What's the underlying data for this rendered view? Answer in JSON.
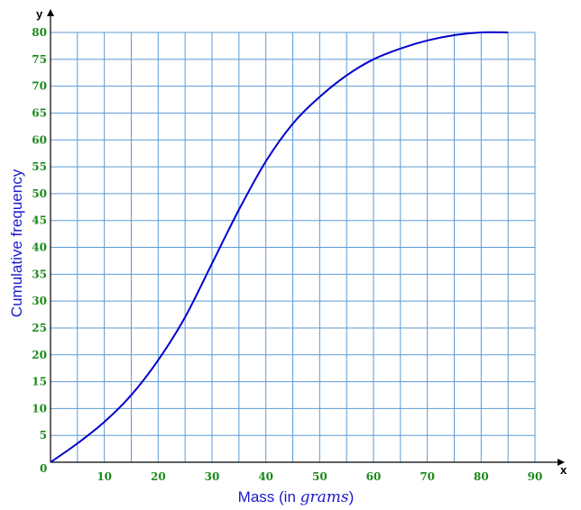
{
  "chart_data": {
    "type": "line",
    "title": "",
    "xlabel_parts": {
      "prefix": "Mass (in ",
      "unit": "grams",
      "suffix": ")"
    },
    "ylabel": "Cumulative frequency",
    "x_axis_letter": "x",
    "y_axis_letter": "y",
    "origin_label": "0",
    "xlim": [
      0,
      90
    ],
    "ylim": [
      0,
      80
    ],
    "x_ticks": [
      10,
      20,
      30,
      40,
      50,
      60,
      70,
      80,
      90
    ],
    "y_ticks": [
      5,
      10,
      15,
      20,
      25,
      30,
      35,
      40,
      45,
      50,
      55,
      60,
      65,
      70,
      75,
      80
    ],
    "grid": true,
    "grid_step_x": 5,
    "grid_step_y": 5,
    "series": [
      {
        "color": "#0000cc",
        "x": [
          0,
          5,
          10,
          15,
          20,
          25,
          30,
          35,
          40,
          45,
          50,
          55,
          60,
          65,
          70,
          75,
          80,
          85
        ],
        "y": [
          0,
          3.5,
          7.5,
          12.5,
          19,
          27,
          37,
          47,
          56,
          63,
          68,
          72,
          75,
          77,
          78.5,
          79.5,
          80,
          80
        ]
      }
    ]
  },
  "colors": {
    "grid": "#5b9bd5",
    "tick_labels": "#1a8a1a",
    "axis_titles": "#1a1acc",
    "curve": "#0000cc"
  }
}
